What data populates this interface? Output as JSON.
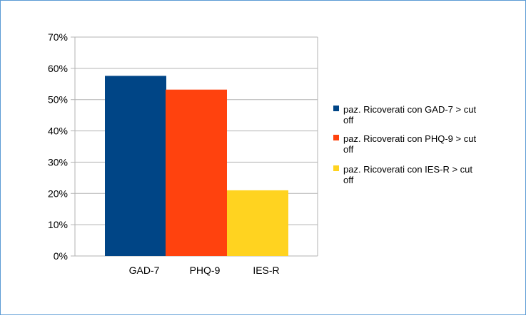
{
  "chart_data": {
    "type": "bar",
    "categories": [
      "GAD-7",
      "PHQ-9",
      "IES-R"
    ],
    "series": [
      {
        "name": "paz. Ricoverati con GAD-7 > cut off",
        "values": [
          0.576,
          null,
          null
        ],
        "color": "#004586"
      },
      {
        "name": "paz. Ricoverati con PHQ-9 > cut off",
        "values": [
          null,
          0.532,
          null
        ],
        "color": "#ff420e"
      },
      {
        "name": "paz. Ricoverati con IES-R > cut off",
        "values": [
          null,
          null,
          0.21
        ],
        "color": "#ffd320"
      }
    ],
    "ylim": [
      0,
      0.7
    ],
    "yticks": [
      "0%",
      "10%",
      "20%",
      "30%",
      "40%",
      "50%",
      "60%",
      "70%"
    ],
    "grid": true,
    "legend_position": "right",
    "title": "",
    "xlabel": "",
    "ylabel": ""
  }
}
